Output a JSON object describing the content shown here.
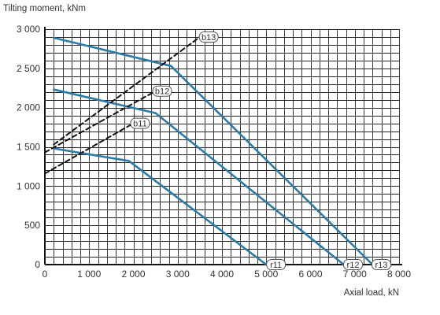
{
  "chart_data": {
    "type": "line",
    "ylabel": "Tilting moment, kNm",
    "xlabel": "Axial load, kN",
    "xlim": [
      0,
      8000
    ],
    "ylim": [
      0,
      3000
    ],
    "x_ticks": [
      0,
      1000,
      2000,
      3000,
      4000,
      5000,
      6000,
      7000,
      8000
    ],
    "x_tick_labels": [
      "0",
      "1 000",
      "2 000",
      "3 000",
      "4 000",
      "5 000",
      "6 000",
      "7 000",
      "8 000"
    ],
    "y_ticks": [
      0,
      500,
      1000,
      1500,
      2000,
      2500,
      3000
    ],
    "y_tick_labels": [
      "0",
      "500",
      "1 000",
      "1 500",
      "2 000",
      "2 500",
      "3 000"
    ],
    "grid": true,
    "grid_step": {
      "x": 200,
      "y": 100
    },
    "colors": {
      "raceway": "#2b7aa8",
      "bolt": "#111111",
      "grid": "#222222",
      "background": "#ffffff"
    },
    "series": [
      {
        "name": "r11",
        "kind": "raceway",
        "style": "solid",
        "x": [
          200,
          1900,
          5000
        ],
        "y": [
          1480,
          1320,
          0
        ],
        "label_at": [
          5220,
          0
        ]
      },
      {
        "name": "r12",
        "kind": "raceway",
        "style": "solid",
        "x": [
          200,
          2500,
          6750
        ],
        "y": [
          2230,
          1930,
          0
        ],
        "label_at": [
          6960,
          0
        ]
      },
      {
        "name": "r13",
        "kind": "raceway",
        "style": "solid",
        "x": [
          200,
          2850,
          7400
        ],
        "y": [
          2890,
          2530,
          0
        ],
        "label_at": [
          7600,
          0
        ]
      },
      {
        "name": "b11",
        "kind": "bolt",
        "style": "dashed",
        "x": [
          0,
          2000
        ],
        "y": [
          1160,
          1800
        ],
        "label_at": [
          2150,
          1800
        ]
      },
      {
        "name": "b12",
        "kind": "bolt",
        "style": "dashed",
        "x": [
          0,
          2500
        ],
        "y": [
          1430,
          2210
        ],
        "label_at": [
          2650,
          2210
        ]
      },
      {
        "name": "b13",
        "kind": "bolt",
        "style": "dashed",
        "x": [
          200,
          3500
        ],
        "y": [
          1530,
          2900
        ],
        "label_at": [
          3700,
          2900
        ]
      }
    ]
  }
}
